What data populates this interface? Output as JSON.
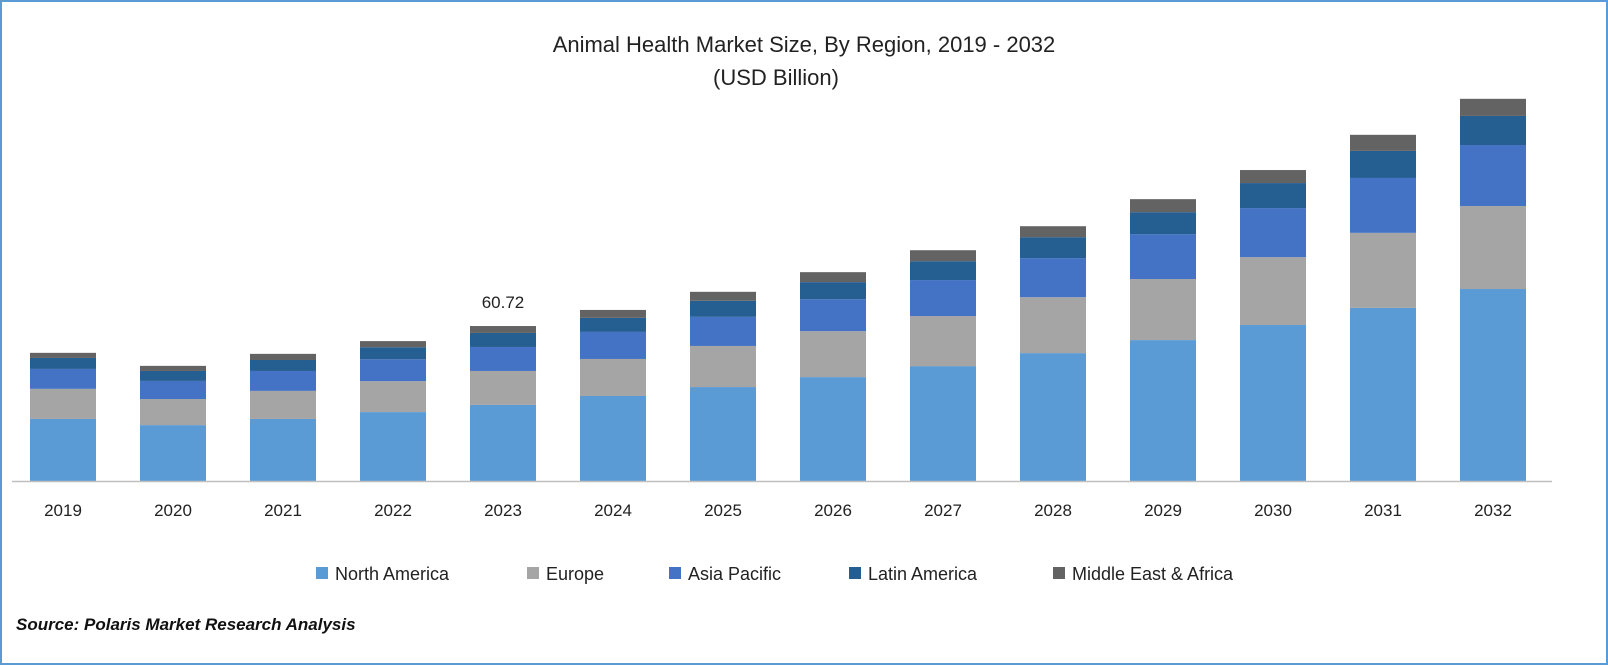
{
  "chart_data": {
    "type": "bar",
    "stacked": true,
    "title": "Animal Health Market Size, By Region, 2019 - 2032",
    "subtitle": "(USD Billion)",
    "xlabel": "",
    "ylabel": "",
    "categories": [
      "2019",
      "2020",
      "2021",
      "2022",
      "2023",
      "2024",
      "2025",
      "2026",
      "2027",
      "2028",
      "2029",
      "2030",
      "2031",
      "2032"
    ],
    "series": [
      {
        "name": "North America",
        "color": "#5B9BD5",
        "values": [
          24.3,
          21.9,
          24.3,
          27.0,
          29.8,
          33.3,
          36.8,
          40.7,
          45.0,
          50.1,
          55.2,
          61.1,
          67.8,
          75.2
        ]
      },
      {
        "name": "Europe",
        "color": "#A5A5A5",
        "values": [
          11.8,
          10.2,
          11.0,
          12.1,
          13.3,
          14.5,
          16.1,
          18.0,
          19.6,
          21.9,
          23.9,
          26.6,
          29.4,
          32.5
        ]
      },
      {
        "name": "Asia Pacific",
        "color": "#4472C4",
        "values": [
          7.8,
          7.1,
          7.8,
          8.6,
          9.4,
          10.6,
          11.4,
          12.5,
          14.1,
          15.3,
          17.6,
          19.2,
          21.5,
          23.9
        ]
      },
      {
        "name": "Latin America",
        "color": "#255E91",
        "values": [
          4.3,
          3.9,
          4.3,
          4.7,
          5.5,
          5.5,
          6.3,
          6.7,
          7.4,
          8.2,
          8.6,
          9.8,
          10.6,
          11.4
        ]
      },
      {
        "name": "Middle East & Africa",
        "color": "#636363",
        "values": [
          2.0,
          2.0,
          2.4,
          2.4,
          2.7,
          3.1,
          3.5,
          3.9,
          4.3,
          4.3,
          5.1,
          5.1,
          6.3,
          6.7
        ]
      }
    ],
    "annotations": [
      {
        "category": "2023",
        "text": "60.72"
      }
    ],
    "ylim": [
      0,
      165
    ],
    "grid": false,
    "legend": "bottom"
  },
  "source": "Source: Polaris Market Research Analysis"
}
